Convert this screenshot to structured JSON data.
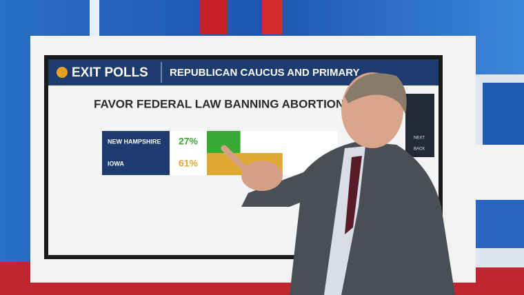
{
  "header": {
    "brand": "EXIT POLLS",
    "title": "REPUBLICAN CAUCUS AND PRIMARY"
  },
  "question": "FAVOR FEDERAL LAW BANNING ABORTIONS NATIONWI",
  "rows": [
    {
      "label": "NEW HAMPSHIRE",
      "value": 27,
      "value_label": "27%",
      "color": "#3aaa35"
    },
    {
      "label": "IOWA",
      "value": 61,
      "value_label": "61%",
      "color": "#e0a830"
    }
  ],
  "side_buttons": [
    "NEXT",
    "BACK"
  ]
}
